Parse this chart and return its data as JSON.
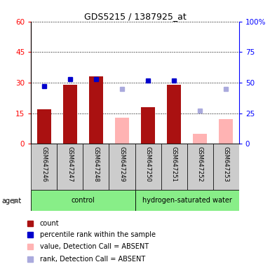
{
  "title": "GDS5215 / 1387925_at",
  "samples": [
    "GSM647246",
    "GSM647247",
    "GSM647248",
    "GSM647249",
    "GSM647250",
    "GSM647251",
    "GSM647252",
    "GSM647253"
  ],
  "count_values": [
    17,
    29,
    33,
    null,
    18,
    29,
    null,
    null
  ],
  "absent_values": [
    null,
    null,
    null,
    13,
    null,
    null,
    5,
    12
  ],
  "percentile_rank": [
    47,
    53,
    53,
    null,
    52,
    52,
    null,
    null
  ],
  "absent_rank": [
    null,
    null,
    null,
    45,
    null,
    null,
    27,
    45
  ],
  "ylim_left": [
    0,
    60
  ],
  "ylim_right": [
    0,
    100
  ],
  "yticks_left": [
    0,
    15,
    30,
    45,
    60
  ],
  "yticks_right": [
    0,
    25,
    50,
    75,
    100
  ],
  "ytick_labels_right": [
    "0",
    "25",
    "50",
    "75",
    "100%"
  ],
  "bar_color_present": "#AA1111",
  "bar_color_absent": "#FFB3B3",
  "dot_color_present": "#0000CC",
  "dot_color_absent": "#AAAADD",
  "group_color": "#88EE88",
  "bg_color": "#CCCCCC",
  "legend_items": [
    {
      "color": "#AA1111",
      "label": "count"
    },
    {
      "color": "#0000CC",
      "label": "percentile rank within the sample"
    },
    {
      "color": "#FFB3B3",
      "label": "value, Detection Call = ABSENT"
    },
    {
      "color": "#AAAADD",
      "label": "rank, Detection Call = ABSENT"
    }
  ]
}
